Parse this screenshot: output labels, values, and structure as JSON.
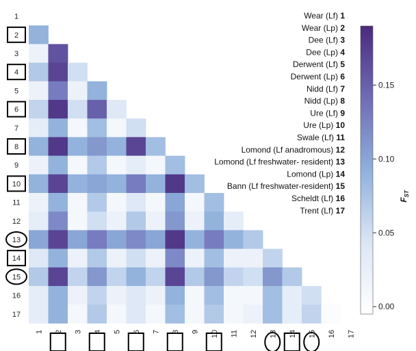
{
  "chart_data": {
    "type": "heatmap",
    "title": "",
    "colorbar": {
      "label": "F",
      "label_subscript": "ST",
      "ticks": [
        "0.00",
        "0.05",
        "0.10",
        "0.15"
      ],
      "tick_values": [
        0.0,
        0.05,
        0.1,
        0.15
      ],
      "range": [
        -0.005,
        0.19
      ],
      "colors": [
        "#ffffff",
        "#dbe6f5",
        "#8fb0dc",
        "#6f6cb6",
        "#4b2a7e"
      ]
    },
    "row_labels": [
      "1",
      "2",
      "3",
      "4",
      "5",
      "6",
      "7",
      "8",
      "9",
      "10",
      "11",
      "12",
      "13",
      "14",
      "15",
      "16",
      "17"
    ],
    "col_labels": [
      "1",
      "2",
      "3",
      "4",
      "5",
      "6",
      "7",
      "8",
      "9",
      "10",
      "11",
      "12",
      "13",
      "14",
      "15",
      "16",
      "17"
    ],
    "boxed_labels": [
      "2",
      "4",
      "6",
      "8",
      "10",
      "14"
    ],
    "circled_labels": [
      "13",
      "15"
    ],
    "legend": [
      {
        "name": "Wear (Lf)",
        "num": "1"
      },
      {
        "name": "Wear (Lp)",
        "num": "2"
      },
      {
        "name": "Dee (Lf)",
        "num": "3"
      },
      {
        "name": "Dee (Lp)",
        "num": "4"
      },
      {
        "name": "Derwent (Lf)",
        "num": "5"
      },
      {
        "name": "Derwent (Lp)",
        "num": "6"
      },
      {
        "name": "Nidd (Lf)",
        "num": "7"
      },
      {
        "name": "Nidd (Lp)",
        "num": "8"
      },
      {
        "name": "Ure (Lf)",
        "num": "9"
      },
      {
        "name": "Ure (Lp)",
        "num": "10"
      },
      {
        "name": "Swale (Lf)",
        "num": "11"
      },
      {
        "name": "Lomond (Lf anadromous)",
        "num": "12"
      },
      {
        "name": "Lomond (Lf freshwater- resident)",
        "num": "13"
      },
      {
        "name": "Lomond (Lp)",
        "num": "14"
      },
      {
        "name": "Bann (Lf freshwater-resident)",
        "num": "15"
      },
      {
        "name": "Scheldt (Lf)",
        "num": "16"
      },
      {
        "name": "Trent (Lf)",
        "num": "17"
      }
    ],
    "values": [
      [],
      [
        0.09
      ],
      [
        0.02,
        0.16
      ],
      [
        0.07,
        0.17,
        0.05
      ],
      [
        0.02,
        0.13,
        0.02,
        0.09
      ],
      [
        0.06,
        0.18,
        0.05,
        0.15,
        0.04
      ],
      [
        0.03,
        0.09,
        0.01,
        0.08,
        0.01,
        0.05
      ],
      [
        0.09,
        0.18,
        0.09,
        0.11,
        0.09,
        0.17,
        0.08
      ],
      [
        0.02,
        0.09,
        0.01,
        0.07,
        0.01,
        0.03,
        0.01,
        0.08
      ],
      [
        0.09,
        0.17,
        0.09,
        0.1,
        0.09,
        0.13,
        0.09,
        0.18,
        0.08
      ],
      [
        0.02,
        0.09,
        0.01,
        0.07,
        0.01,
        0.04,
        0.01,
        0.1,
        0.01,
        0.08
      ],
      [
        0.03,
        0.12,
        0.01,
        0.05,
        0.02,
        0.07,
        0.02,
        0.11,
        0.02,
        0.09,
        0.03
      ],
      [
        0.1,
        0.17,
        0.1,
        0.13,
        0.1,
        0.12,
        0.1,
        0.18,
        0.09,
        0.13,
        0.09,
        0.07
      ],
      [
        0.04,
        0.09,
        0.02,
        0.07,
        0.02,
        0.05,
        0.02,
        0.12,
        0.02,
        0.08,
        0.02,
        0.02,
        0.06
      ],
      [
        0.07,
        0.17,
        0.06,
        0.11,
        0.06,
        0.09,
        0.06,
        0.17,
        0.07,
        0.11,
        0.06,
        0.05,
        0.11,
        0.07
      ],
      [
        0.03,
        0.09,
        0.02,
        0.06,
        0.02,
        0.04,
        0.02,
        0.09,
        0.01,
        0.08,
        0.01,
        0.01,
        0.08,
        0.03,
        0.05
      ],
      [
        0.03,
        0.09,
        0.01,
        0.07,
        0.01,
        0.04,
        0.01,
        0.08,
        0.01,
        0.07,
        0.01,
        0.02,
        0.08,
        0.03,
        0.06,
        0.0
      ]
    ]
  }
}
